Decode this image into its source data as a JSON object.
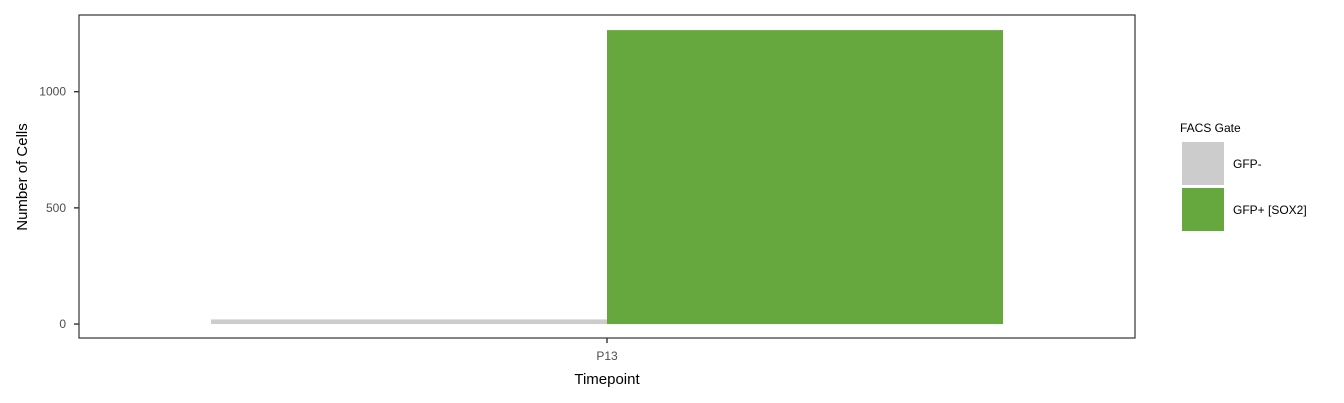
{
  "chart_data": {
    "type": "bar",
    "xlabel": "Timepoint",
    "ylabel": "Number of Cells",
    "categories": [
      "P13"
    ],
    "ylim": [
      -60,
      1330
    ],
    "yticks": [
      0,
      500,
      1000
    ],
    "grid": false,
    "legend": {
      "title": "FACS Gate",
      "placement": "right"
    },
    "series": [
      {
        "name": "GFP-",
        "values": [
          20
        ],
        "color": "#cccccc"
      },
      {
        "name": "GFP+ [SOX2]",
        "values": [
          1265
        ],
        "color": "#66a83e"
      }
    ]
  }
}
